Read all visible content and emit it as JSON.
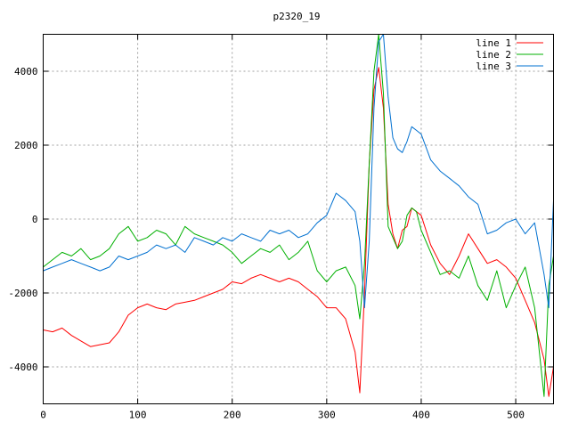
{
  "chart_data": {
    "type": "line",
    "title": "p2320_19",
    "xlim": [
      0,
      540
    ],
    "ylim": [
      -5000,
      5000
    ],
    "xticks": [
      0,
      100,
      200,
      300,
      400,
      500
    ],
    "yticks": [
      -4000,
      -2000,
      0,
      2000,
      4000
    ],
    "grid": true,
    "legend": "top-right",
    "series": [
      {
        "name": "line 1",
        "color": "#ff0000",
        "x": [
          0,
          10,
          20,
          30,
          40,
          50,
          60,
          70,
          80,
          90,
          100,
          110,
          120,
          130,
          140,
          150,
          160,
          170,
          180,
          190,
          200,
          210,
          220,
          230,
          240,
          250,
          260,
          270,
          280,
          290,
          300,
          310,
          320,
          330,
          335,
          340,
          345,
          350,
          355,
          360,
          365,
          370,
          375,
          380,
          385,
          390,
          395,
          400,
          410,
          420,
          430,
          440,
          450,
          460,
          470,
          480,
          490,
          500,
          510,
          520,
          530,
          535,
          540
        ],
        "y": [
          -3000,
          -3050,
          -2950,
          -3150,
          -3300,
          -3450,
          -3400,
          -3350,
          -3050,
          -2600,
          -2400,
          -2300,
          -2400,
          -2450,
          -2300,
          -2250,
          -2200,
          -2100,
          -2000,
          -1900,
          -1700,
          -1750,
          -1600,
          -1500,
          -1600,
          -1700,
          -1600,
          -1700,
          -1900,
          -2100,
          -2400,
          -2400,
          -2700,
          -3600,
          -4700,
          -2000,
          1500,
          3500,
          4100,
          3000,
          400,
          -400,
          -800,
          -300,
          -200,
          300,
          200,
          100,
          -700,
          -1200,
          -1500,
          -1000,
          -400,
          -800,
          -1200,
          -1100,
          -1300,
          -1600,
          -2200,
          -2800,
          -3800,
          -4800,
          -4000
        ]
      },
      {
        "name": "line 2",
        "color": "#00b000",
        "x": [
          0,
          10,
          20,
          30,
          40,
          50,
          60,
          70,
          80,
          90,
          100,
          110,
          120,
          130,
          140,
          150,
          160,
          170,
          180,
          190,
          200,
          210,
          220,
          230,
          240,
          250,
          260,
          270,
          280,
          290,
          300,
          310,
          320,
          330,
          335,
          340,
          345,
          350,
          355,
          360,
          365,
          370,
          375,
          380,
          385,
          390,
          395,
          400,
          410,
          420,
          430,
          440,
          450,
          460,
          470,
          480,
          490,
          500,
          510,
          520,
          530,
          535,
          540
        ],
        "y": [
          -1300,
          -1100,
          -900,
          -1000,
          -800,
          -1100,
          -1000,
          -800,
          -400,
          -200,
          -600,
          -500,
          -300,
          -400,
          -700,
          -200,
          -400,
          -500,
          -600,
          -700,
          -900,
          -1200,
          -1000,
          -800,
          -900,
          -700,
          -1100,
          -900,
          -600,
          -1400,
          -1700,
          -1400,
          -1300,
          -1800,
          -2700,
          -1200,
          1500,
          4000,
          5000,
          3400,
          -200,
          -500,
          -800,
          -600,
          100,
          300,
          200,
          -300,
          -900,
          -1500,
          -1400,
          -1600,
          -1000,
          -1800,
          -2200,
          -1400,
          -2400,
          -1800,
          -1300,
          -2400,
          -4800,
          -1800,
          -1000
        ]
      },
      {
        "name": "line 3",
        "color": "#0070d0",
        "x": [
          0,
          10,
          20,
          30,
          40,
          50,
          60,
          70,
          80,
          90,
          100,
          110,
          120,
          130,
          140,
          150,
          160,
          170,
          180,
          190,
          200,
          210,
          220,
          230,
          240,
          250,
          260,
          270,
          280,
          290,
          300,
          310,
          320,
          330,
          335,
          340,
          345,
          350,
          355,
          360,
          365,
          370,
          375,
          380,
          385,
          390,
          395,
          400,
          410,
          420,
          430,
          440,
          450,
          460,
          470,
          480,
          490,
          500,
          510,
          520,
          530,
          535,
          540
        ],
        "y": [
          -1400,
          -1300,
          -1200,
          -1100,
          -1200,
          -1300,
          -1400,
          -1300,
          -1000,
          -1100,
          -1000,
          -900,
          -700,
          -800,
          -700,
          -900,
          -500,
          -600,
          -700,
          -500,
          -600,
          -400,
          -500,
          -600,
          -300,
          -400,
          -300,
          -500,
          -400,
          -100,
          100,
          700,
          500,
          200,
          -600,
          -2400,
          -600,
          3000,
          4800,
          5000,
          3300,
          2200,
          1900,
          1800,
          2100,
          2500,
          2400,
          2300,
          1600,
          1300,
          1100,
          900,
          600,
          400,
          -400,
          -300,
          -100,
          0,
          -400,
          -100,
          -1500,
          -2400,
          500
        ]
      }
    ]
  }
}
